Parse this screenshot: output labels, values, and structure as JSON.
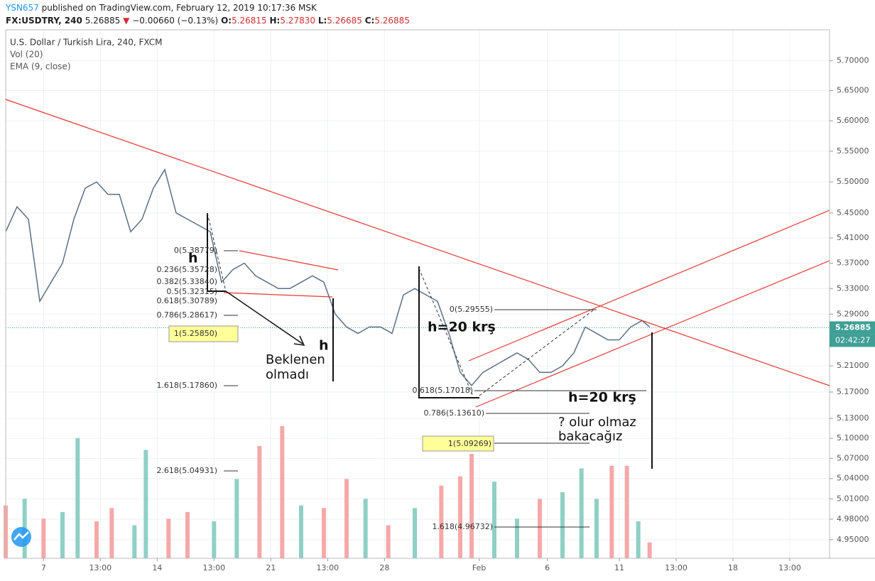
{
  "header": {
    "author": "YSN657",
    "published": "published on TradingView.com, February 12, 2019 10:17:36 MSK",
    "symbol": "FX:USDTRY, 240",
    "last": "5.26885",
    "arrow": "▼",
    "change": "−0.00660 (−0.13%)",
    "ohlc": [
      {
        "key": "O:",
        "value": "5.26815"
      },
      {
        "key": "H:",
        "value": "5.27830"
      },
      {
        "key": "L:",
        "value": "5.26685"
      },
      {
        "key": "C:",
        "value": "5.26885"
      }
    ]
  },
  "chart_data": {
    "type": "line",
    "log": true,
    "grid": true,
    "legend": [
      "U.S. Dollar / Turkish Lira, 240, FXCM",
      "Vol (20)",
      "EMA (9, close)"
    ],
    "color": "#5b6f86",
    "x": [
      0,
      3,
      6,
      9,
      12,
      15,
      18,
      21,
      24,
      27,
      30,
      33,
      36,
      39,
      42,
      45,
      48,
      51,
      54,
      57,
      60,
      63,
      66,
      69,
      72,
      75,
      78,
      81,
      84,
      87,
      90,
      93,
      96,
      99,
      102,
      105,
      108,
      111,
      114,
      117,
      120,
      123,
      126,
      129,
      132,
      135,
      138,
      141,
      144,
      147,
      150,
      153,
      156,
      159,
      162,
      165,
      168,
      170
    ],
    "values": [
      5.42,
      5.46,
      5.44,
      5.31,
      5.34,
      5.37,
      5.44,
      5.49,
      5.5,
      5.48,
      5.48,
      5.42,
      5.44,
      5.49,
      5.52,
      5.45,
      5.44,
      5.43,
      5.42,
      5.34,
      5.36,
      5.37,
      5.35,
      5.34,
      5.33,
      5.33,
      5.34,
      5.35,
      5.34,
      5.29,
      5.27,
      5.26,
      5.27,
      5.27,
      5.26,
      5.32,
      5.33,
      5.32,
      5.31,
      5.26,
      5.2,
      5.18,
      5.2,
      5.21,
      5.22,
      5.23,
      5.22,
      5.2,
      5.2,
      5.21,
      5.23,
      5.27,
      5.26,
      5.25,
      5.25,
      5.27,
      5.28,
      5.27
    ],
    "xlim": [
      0,
      217.5
    ],
    "xticks": [
      {
        "value": 10,
        "label": "7"
      },
      {
        "value": 25,
        "label": "13:00"
      },
      {
        "value": 40,
        "label": "14"
      },
      {
        "value": 55,
        "label": "13:00"
      },
      {
        "value": 70,
        "label": "21"
      },
      {
        "value": 85,
        "label": "13:00"
      },
      {
        "value": 100,
        "label": "28"
      },
      {
        "value": 125,
        "label": "Feb"
      },
      {
        "value": 143,
        "label": "6"
      },
      {
        "value": 162,
        "label": "11"
      },
      {
        "value": 177,
        "label": "13:00"
      },
      {
        "value": 192,
        "label": "18"
      },
      {
        "value": 207,
        "label": "13:00"
      }
    ],
    "ylim": [
      4.923,
      5.752
    ],
    "yticks": [
      {
        "value": 5.7,
        "label": "5.70000"
      },
      {
        "value": 5.65,
        "label": "5.65000"
      },
      {
        "value": 5.6,
        "label": "5.60000"
      },
      {
        "value": 5.55,
        "label": "5.55000"
      },
      {
        "value": 5.5,
        "label": "5.50000"
      },
      {
        "value": 5.45,
        "label": "5.45000"
      },
      {
        "value": 5.41,
        "label": "5.41000"
      },
      {
        "value": 5.37,
        "label": "5.37000"
      },
      {
        "value": 5.33,
        "label": "5.33000"
      },
      {
        "value": 5.29,
        "label": "5.29000"
      },
      {
        "value": 5.21,
        "label": "5.21000"
      },
      {
        "value": 5.17,
        "label": "5.17000"
      },
      {
        "value": 5.13,
        "label": "5.13000"
      },
      {
        "value": 5.1,
        "label": "5.10000"
      },
      {
        "value": 5.07,
        "label": "5.07000"
      },
      {
        "value": 5.04,
        "label": "5.04000"
      },
      {
        "value": 5.01,
        "label": "5.01000"
      },
      {
        "value": 4.98,
        "label": "4.98000"
      },
      {
        "value": 4.95,
        "label": "4.95000"
      }
    ],
    "last_price": 5.26885,
    "countdown": "02:42:27",
    "volume": {
      "x": [
        0,
        5,
        10,
        15,
        19,
        24,
        28,
        34,
        37,
        43,
        48,
        55,
        61,
        67,
        73,
        78,
        84,
        90,
        95,
        101,
        108,
        115,
        120,
        123,
        129,
        135,
        141,
        147,
        152,
        156,
        160,
        164,
        167,
        170
      ],
      "values": [
        40,
        45,
        30,
        35,
        91,
        28,
        38,
        25,
        82,
        30,
        35,
        28,
        60,
        85,
        100,
        40,
        38,
        60,
        45,
        25,
        38,
        55,
        62,
        79,
        58,
        30,
        45,
        50,
        68,
        45,
        70,
        70,
        28,
        12
      ],
      "colors": [
        "#f4a9a8",
        "#8fd0c4",
        "#f4a9a8",
        "#8fd0c4",
        "#8fd0c4",
        "#f4a9a8",
        "#f4a9a8",
        "#8fd0c4",
        "#8fd0c4",
        "#f4a9a8",
        "#f4a9a8",
        "#8fd0c4",
        "#8fd0c4",
        "#f4a9a8",
        "#f4a9a8",
        "#8fd0c4",
        "#f4a9a8",
        "#f4a9a8",
        "#8fd0c4",
        "#f4a9a8",
        "#8fd0c4",
        "#f4a9a8",
        "#f4a9a8",
        "#f4a9a8",
        "#8fd0c4",
        "#8fd0c4",
        "#f4a9a8",
        "#8fd0c4",
        "#8fd0c4",
        "#8fd0c4",
        "#f4a9a8",
        "#f4a9a8",
        "#8fd0c4",
        "#f4a9a8"
      ],
      "ylim": [
        0,
        100
      ]
    }
  },
  "drawings": {
    "fib_left": [
      "0(5.38779)",
      "0.236(5.35728)",
      "0.382(5.33840)",
      "0.5(5.32315)",
      "0.618(5.30789)",
      "0.786(5.28617)",
      "1(5.25850)",
      "1.618(5.17860)",
      "2.618(5.04931)"
    ],
    "fib_right": [
      "0(5.29555)",
      "0.618(5.17018)",
      "0.786(5.13610)",
      "1(5.09269)",
      "1.618(4.96732)"
    ],
    "notes": [
      "h",
      "h",
      "Beklenen",
      "olmadı",
      "h=20 krş",
      "h=20 krş",
      "? olur olmaz",
      "bakacağız"
    ]
  }
}
